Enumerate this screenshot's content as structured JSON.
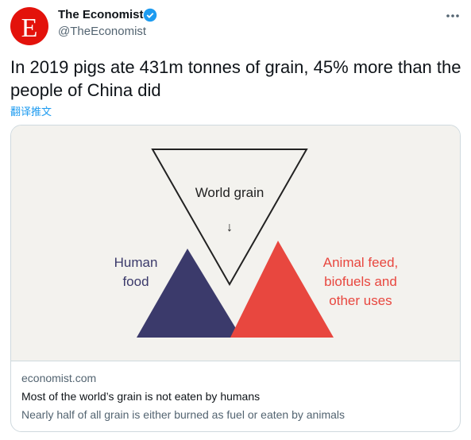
{
  "author": {
    "name": "The Economist",
    "handle": "@TheEconomist",
    "avatar_letter": "E"
  },
  "tweet": {
    "text": "In 2019 pigs ate 431m tonnes of grain, 45% more than the people of China did",
    "translate": "翻译推文"
  },
  "card": {
    "image": {
      "center_label": "World grain",
      "arrow": "↓",
      "left_label": [
        "Human",
        "food"
      ],
      "right_label": [
        "Animal feed,",
        "biofuels and",
        "other uses"
      ]
    },
    "domain": "economist.com",
    "title": "Most of the world’s grain is not eaten by humans",
    "description": "Nearly half of all grain is either burned as fuel or eaten by animals"
  }
}
